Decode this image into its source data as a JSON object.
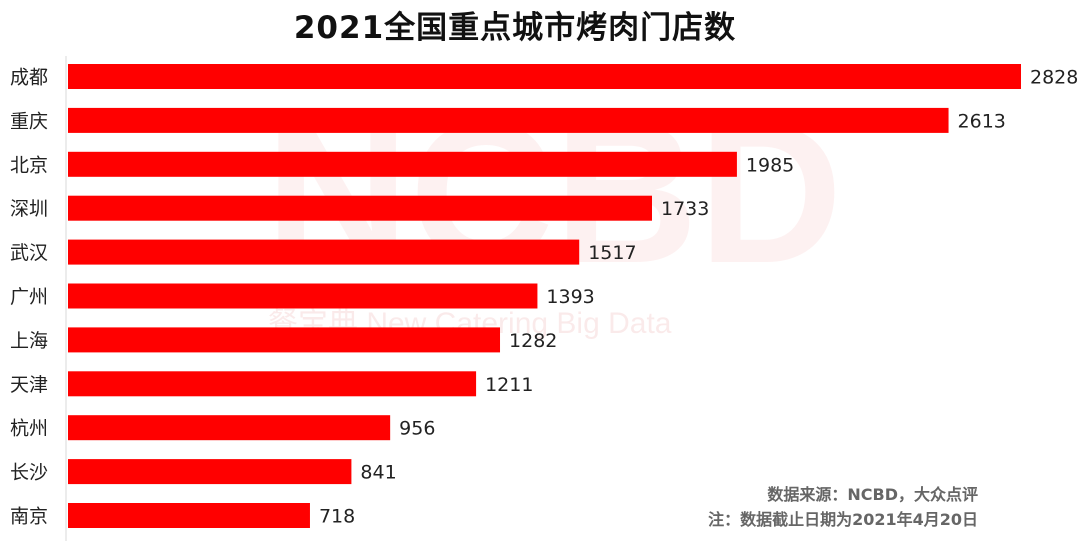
{
  "chart_data": {
    "type": "bar",
    "orientation": "horizontal",
    "title": "2021全国重点城市烤肉门店数",
    "categories": [
      "成都",
      "重庆",
      "北京",
      "深圳",
      "武汉",
      "广州",
      "上海",
      "天津",
      "杭州",
      "长沙",
      "南京"
    ],
    "values": [
      2828,
      2613,
      1985,
      1733,
      1517,
      1393,
      1282,
      1211,
      956,
      841,
      718
    ],
    "xlim": [
      0,
      2828
    ],
    "bar_color": "#ff0000",
    "grid": false,
    "legend": "none"
  },
  "watermark": {
    "main": "NCBD",
    "sub": "餐宝典 New Catering Big Data"
  },
  "notes": {
    "source": "数据来源：NCBD，大众点评",
    "cutoff": "注：数据截止日期为2021年4月20日"
  }
}
